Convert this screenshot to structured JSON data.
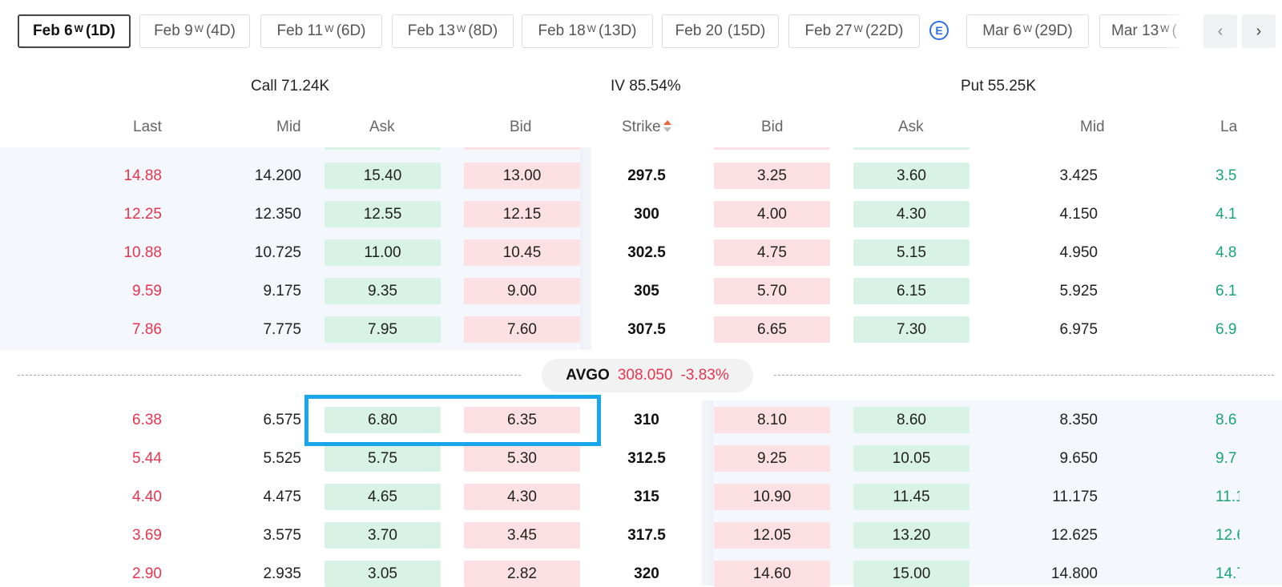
{
  "tabs": [
    {
      "label": "Feb 6",
      "sup": "W",
      "days": "(1D)",
      "active": true
    },
    {
      "label": "Feb 9",
      "sup": "W",
      "days": "(4D)"
    },
    {
      "label": "Feb 11",
      "sup": "W",
      "days": "(6D)"
    },
    {
      "label": "Feb 13",
      "sup": "W",
      "days": "(8D)"
    },
    {
      "label": "Feb 18",
      "sup": "W",
      "days": "(13D)"
    },
    {
      "label": "Feb 20",
      "sup": "",
      "days": "(15D)"
    },
    {
      "label": "Feb 27",
      "sup": "W",
      "days": "(22D)"
    },
    {
      "label": "Mar 6",
      "sup": "W",
      "days": "(29D)"
    },
    {
      "label": "Mar 13",
      "sup": "W",
      "days": "("
    }
  ],
  "earnings_badge": "E",
  "nav": {
    "prev": "‹",
    "next": "›"
  },
  "summary": {
    "call": "Call 71.24K",
    "iv": "IV 85.54%",
    "put": "Put 55.25K"
  },
  "columns": {
    "call_last": "Last",
    "call_mid": "Mid",
    "call_ask": "Ask",
    "call_bid": "Bid",
    "strike": "Strike",
    "put_bid": "Bid",
    "put_ask": "Ask",
    "put_mid": "Mid",
    "put_last": "La"
  },
  "underlying": {
    "symbol": "AVGO",
    "price": "308.050",
    "change": "-3.83%"
  },
  "rows_above": [
    {
      "c_last": "14.88",
      "c_mid": "14.200",
      "c_ask": "15.40",
      "c_bid": "13.00",
      "strike": "297.5",
      "p_bid": "3.25",
      "p_ask": "3.60",
      "p_mid": "3.425",
      "p_last": "3.5"
    },
    {
      "c_last": "12.25",
      "c_mid": "12.350",
      "c_ask": "12.55",
      "c_bid": "12.15",
      "strike": "300",
      "p_bid": "4.00",
      "p_ask": "4.30",
      "p_mid": "4.150",
      "p_last": "4.1"
    },
    {
      "c_last": "10.88",
      "c_mid": "10.725",
      "c_ask": "11.00",
      "c_bid": "10.45",
      "strike": "302.5",
      "p_bid": "4.75",
      "p_ask": "5.15",
      "p_mid": "4.950",
      "p_last": "4.8"
    },
    {
      "c_last": "9.59",
      "c_mid": "9.175",
      "c_ask": "9.35",
      "c_bid": "9.00",
      "strike": "305",
      "p_bid": "5.70",
      "p_ask": "6.15",
      "p_mid": "5.925",
      "p_last": "6.1"
    },
    {
      "c_last": "7.86",
      "c_mid": "7.775",
      "c_ask": "7.95",
      "c_bid": "7.60",
      "strike": "307.5",
      "p_bid": "6.65",
      "p_ask": "7.30",
      "p_mid": "6.975",
      "p_last": "6.9"
    }
  ],
  "rows_below": [
    {
      "c_last": "6.38",
      "c_mid": "6.575",
      "c_ask": "6.80",
      "c_bid": "6.35",
      "strike": "310",
      "p_bid": "8.10",
      "p_ask": "8.60",
      "p_mid": "8.350",
      "p_last": "8.6"
    },
    {
      "c_last": "5.44",
      "c_mid": "5.525",
      "c_ask": "5.75",
      "c_bid": "5.30",
      "strike": "312.5",
      "p_bid": "9.25",
      "p_ask": "10.05",
      "p_mid": "9.650",
      "p_last": "9.7"
    },
    {
      "c_last": "4.40",
      "c_mid": "4.475",
      "c_ask": "4.65",
      "c_bid": "4.30",
      "strike": "315",
      "p_bid": "10.90",
      "p_ask": "11.45",
      "p_mid": "11.175",
      "p_last": "11.1"
    },
    {
      "c_last": "3.69",
      "c_mid": "3.575",
      "c_ask": "3.70",
      "c_bid": "3.45",
      "strike": "317.5",
      "p_bid": "12.05",
      "p_ask": "13.20",
      "p_mid": "12.625",
      "p_last": "12.6"
    },
    {
      "c_last": "2.90",
      "c_mid": "2.935",
      "c_ask": "3.05",
      "c_bid": "2.82",
      "strike": "320",
      "p_bid": "14.60",
      "p_ask": "15.00",
      "p_mid": "14.800",
      "p_last": "14.7"
    }
  ]
}
